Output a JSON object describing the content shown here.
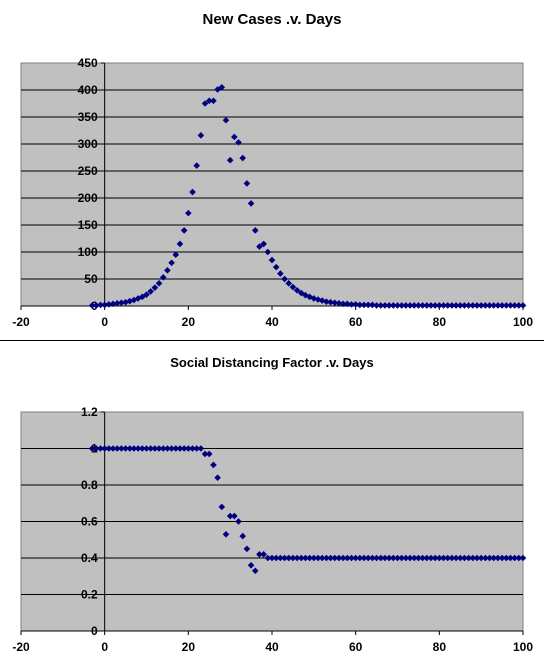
{
  "chart_data": [
    {
      "type": "scatter",
      "title": "New Cases .v. Days",
      "xlabel": "",
      "ylabel": "",
      "xlim": [
        -20,
        100
      ],
      "ylim": [
        0,
        450
      ],
      "xticks": [
        -20,
        0,
        20,
        40,
        60,
        80,
        100
      ],
      "yticks": [
        0,
        50,
        100,
        150,
        200,
        250,
        300,
        350,
        400,
        450
      ],
      "grid": true,
      "legend": "none",
      "marker_color": "#000080",
      "plot_bg": "#c0c0c0",
      "series": [
        {
          "x": [
            -3,
            -2,
            -1,
            0,
            1,
            2,
            3,
            4,
            5,
            6,
            7,
            8,
            9,
            10,
            11,
            12,
            13,
            14,
            15,
            16,
            17,
            18,
            19,
            20,
            21,
            22,
            23,
            24,
            25,
            26,
            27,
            28,
            29,
            30,
            31,
            32,
            33,
            34,
            35,
            36,
            37,
            38,
            39,
            40,
            41,
            42,
            43,
            44,
            45,
            46,
            47,
            48,
            49,
            50,
            51,
            52,
            53,
            54,
            55,
            56,
            57,
            58,
            59,
            60,
            61,
            62,
            63,
            64,
            65,
            66,
            67,
            68,
            69,
            70,
            71,
            72,
            73,
            74,
            75,
            76,
            77,
            78,
            79,
            80,
            81,
            82,
            83,
            84,
            85,
            86,
            87,
            88,
            89,
            90,
            91,
            92,
            93,
            94,
            95,
            96,
            97,
            98,
            99,
            100
          ],
          "y": [
            1,
            1,
            2,
            2,
            3,
            4,
            5,
            6,
            7,
            9,
            11,
            14,
            17,
            21,
            27,
            34,
            42,
            53,
            66,
            80,
            95,
            115,
            140,
            172,
            211,
            260,
            316,
            375,
            380,
            380,
            401,
            405,
            344,
            270,
            313,
            303,
            274,
            227,
            190,
            140,
            110,
            115,
            100,
            85,
            72,
            60,
            50,
            42,
            35,
            29,
            24,
            20,
            17,
            14,
            12,
            10,
            8,
            7,
            6,
            5,
            4,
            4,
            3,
            3,
            2,
            2,
            2,
            2,
            1,
            1,
            1,
            1,
            1,
            1,
            1,
            1,
            1,
            1,
            1,
            1,
            1,
            1,
            1,
            1,
            1,
            1,
            1,
            1,
            1,
            1,
            1,
            1,
            1,
            1,
            1,
            1,
            1,
            1,
            1,
            1,
            1,
            1,
            1,
            1
          ]
        }
      ]
    },
    {
      "type": "scatter",
      "title": "Social Distancing Factor .v. Days",
      "xlabel": "",
      "ylabel": "",
      "xlim": [
        -20,
        100
      ],
      "ylim": [
        0,
        1.2
      ],
      "xticks": [
        -20,
        0,
        20,
        40,
        60,
        80,
        100
      ],
      "yticks": [
        0,
        0.2,
        0.4,
        0.6,
        0.8,
        1,
        1.2
      ],
      "grid": true,
      "legend": "none",
      "marker_color": "#000080",
      "plot_bg": "#c0c0c0",
      "series": [
        {
          "x": [
            -3,
            -2,
            -1,
            0,
            1,
            2,
            3,
            4,
            5,
            6,
            7,
            8,
            9,
            10,
            11,
            12,
            13,
            14,
            15,
            16,
            17,
            18,
            19,
            20,
            21,
            22,
            23,
            24,
            25,
            26,
            27,
            28,
            29,
            30,
            31,
            32,
            33,
            34,
            35,
            36,
            37,
            38,
            39,
            40,
            41,
            42,
            43,
            44,
            45,
            46,
            47,
            48,
            49,
            50,
            51,
            52,
            53,
            54,
            55,
            56,
            57,
            58,
            59,
            60,
            61,
            62,
            63,
            64,
            65,
            66,
            67,
            68,
            69,
            70,
            71,
            72,
            73,
            74,
            75,
            76,
            77,
            78,
            79,
            80,
            81,
            82,
            83,
            84,
            85,
            86,
            87,
            88,
            89,
            90,
            91,
            92,
            93,
            94,
            95,
            96,
            97,
            98,
            99,
            100
          ],
          "y": [
            1,
            1,
            1,
            1,
            1,
            1,
            1,
            1,
            1,
            1,
            1,
            1,
            1,
            1,
            1,
            1,
            1,
            1,
            1,
            1,
            1,
            1,
            1,
            1,
            1,
            1,
            1,
            0.97,
            0.97,
            0.91,
            0.84,
            0.68,
            0.53,
            0.63,
            0.63,
            0.6,
            0.52,
            0.45,
            0.36,
            0.33,
            0.42,
            0.42,
            0.4,
            0.4,
            0.4,
            0.4,
            0.4,
            0.4,
            0.4,
            0.4,
            0.4,
            0.4,
            0.4,
            0.4,
            0.4,
            0.4,
            0.4,
            0.4,
            0.4,
            0.4,
            0.4,
            0.4,
            0.4,
            0.4,
            0.4,
            0.4,
            0.4,
            0.4,
            0.4,
            0.4,
            0.4,
            0.4,
            0.4,
            0.4,
            0.4,
            0.4,
            0.4,
            0.4,
            0.4,
            0.4,
            0.4,
            0.4,
            0.4,
            0.4,
            0.4,
            0.4,
            0.4,
            0.4,
            0.4,
            0.4,
            0.4,
            0.4,
            0.4,
            0.4,
            0.4,
            0.4,
            0.4,
            0.4,
            0.4,
            0.4,
            0.4,
            0.4,
            0.4,
            0.4
          ]
        }
      ]
    }
  ]
}
